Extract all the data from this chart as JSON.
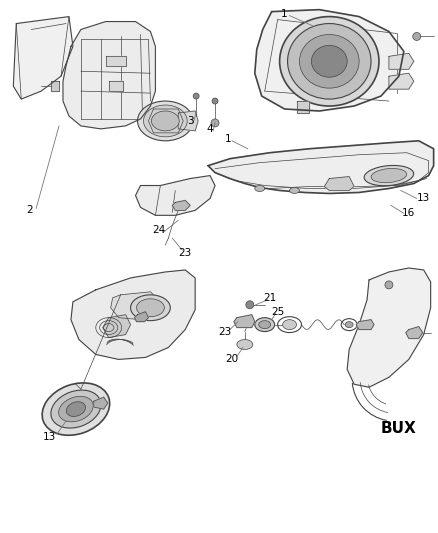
{
  "bg_color": "#ffffff",
  "line_color": "#444444",
  "label_color": "#000000",
  "label_fontsize": 7.5,
  "bux_fontsize": 11,
  "figsize": [
    4.38,
    5.33
  ],
  "dpi": 100,
  "parts": {
    "headlamp_unit_label": "1",
    "fog_lamp_label": "1",
    "housing_label": "2",
    "bolt1_label": "3",
    "bolt2_label": "4",
    "side_marker_top_label": "13",
    "side_marker_bot_label": "13",
    "lamp16_label": "16",
    "connector23a_label": "23",
    "connector24_label": "24",
    "screw21_label": "21",
    "connector23b_label": "23",
    "socket25_label": "25",
    "socket20_label": "20",
    "bux_label": "BUX"
  }
}
